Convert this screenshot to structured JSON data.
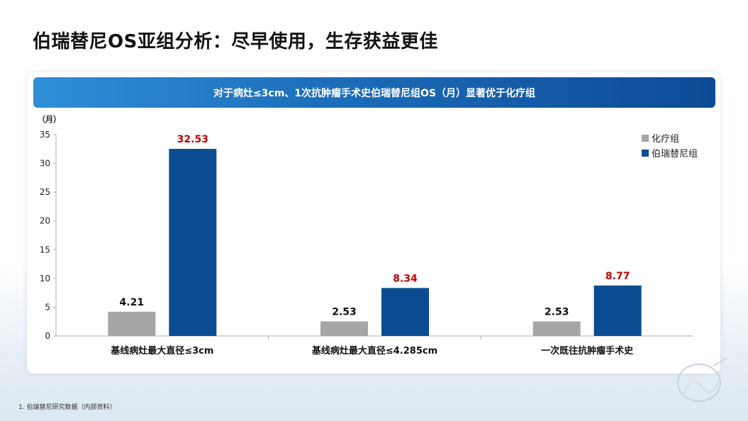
{
  "page": {
    "title": "伯瑞替尼OS亚组分析：尽早使用，生存获益更佳",
    "banner": "对于病灶≤3cm、1次抗肿瘤手术史伯瑞替尼组OS（月）显著优于化疗组",
    "footnote": "1.  伯瑞替尼研究数据（内部资料）"
  },
  "colors": {
    "chemo": "#a6a6a6",
    "drug": "#0b4c92",
    "drug_label": "#c00000"
  },
  "chart_data": {
    "type": "bar",
    "ylabel": "（月）",
    "ylim": [
      0,
      35
    ],
    "yticks": [
      0,
      5,
      10,
      15,
      20,
      25,
      30,
      35
    ],
    "categories": [
      "基线病灶最大直径≤3cm",
      "基线病灶最大直径≤4.285cm",
      "一次既往抗肿瘤手术史"
    ],
    "series": [
      {
        "name": "化疗组",
        "values": [
          4.21,
          2.53,
          2.53
        ]
      },
      {
        "name": "伯瑞替尼组",
        "values": [
          32.53,
          8.34,
          8.77
        ]
      }
    ],
    "legend_position": "top-right",
    "grid": false
  }
}
